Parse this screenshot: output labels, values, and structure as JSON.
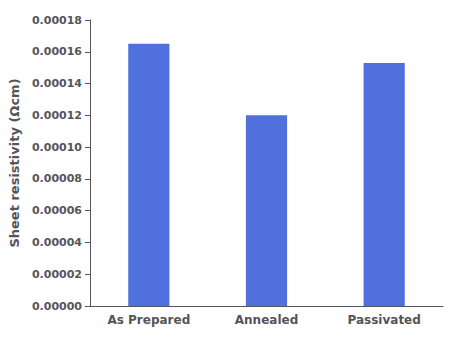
{
  "chart_data": {
    "type": "bar",
    "categories": [
      "As Prepared",
      "Annealed",
      "Passivated"
    ],
    "values": [
      0.000165,
      0.00012,
      0.000153
    ],
    "ylabel": "Sheet resistivity (Ωcm)",
    "ylim": [
      0,
      0.00018
    ],
    "yticks": [
      {
        "value": 0.0,
        "label": "0.00000"
      },
      {
        "value": 2e-05,
        "label": "0.00002"
      },
      {
        "value": 4e-05,
        "label": "0.00004"
      },
      {
        "value": 6e-05,
        "label": "0.00006"
      },
      {
        "value": 8e-05,
        "label": "0.00008"
      },
      {
        "value": 0.0001,
        "label": "0.00010"
      },
      {
        "value": 0.00012,
        "label": "0.00012"
      },
      {
        "value": 0.00014,
        "label": "0.00014"
      },
      {
        "value": 0.00016,
        "label": "0.00016"
      },
      {
        "value": 0.00018,
        "label": "0.00018"
      }
    ],
    "grid": false
  }
}
